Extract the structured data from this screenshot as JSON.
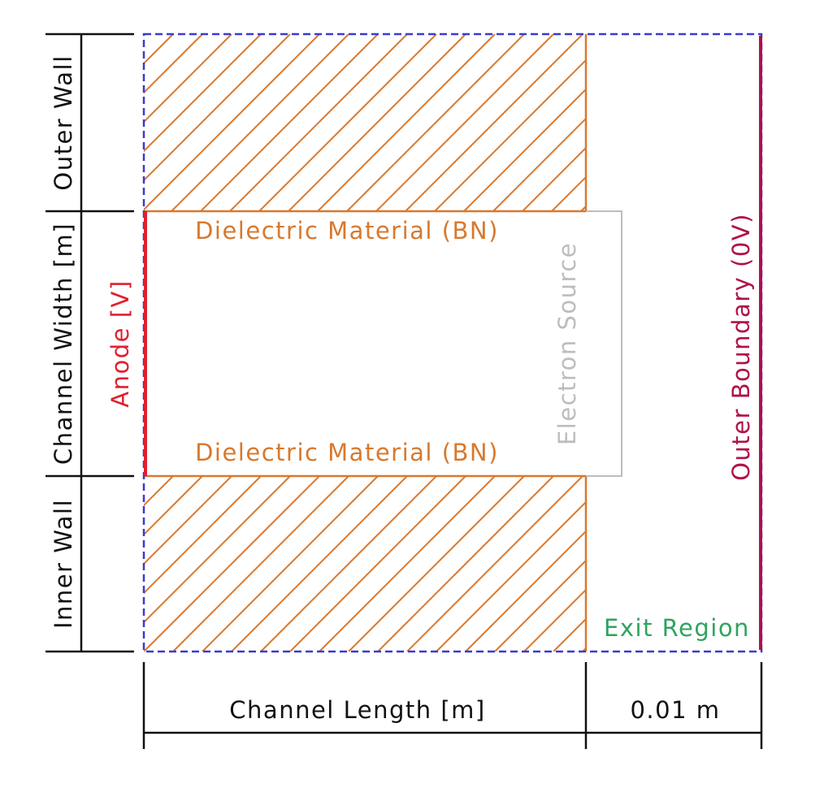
{
  "labels": {
    "outer_wall": "Outer Wall",
    "channel_width": "Channel Width [m]",
    "inner_wall": "Inner Wall",
    "anode": "Anode [V]",
    "dielectric_top": "Dielectric Material (BN)",
    "dielectric_bottom": "Dielectric Material (BN)",
    "electron_source": "Electron Source",
    "outer_boundary": "Outer Boundary (0V)",
    "exit_region": "Exit Region",
    "channel_length": "Channel Length [m]",
    "exit_length": "0.01 m"
  },
  "colors": {
    "dielectric": "#d9782d",
    "anode": "#e0202f",
    "outer_boundary": "#b0104a",
    "domain_boundary": "#3a3ad0",
    "exit_region": "#2fa35f",
    "electron_source": "#bdbdbd",
    "dimension": "#111111"
  }
}
